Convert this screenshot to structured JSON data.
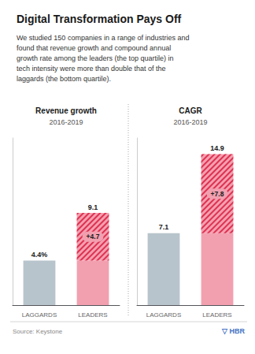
{
  "title": "Digital Transformation Pays Off",
  "subtitle": "We studied 150 companies in a range of industries and\nfound that revenue growth and compound annual\ngrowth rate among the leaders (the top quartile) in\ntech intensity were more than double that of the\nlaggards (the bottom quartile).",
  "annotations": [
    "Source: Keystone",
    "▽ HBR"
  ],
  "chart_data": [
    {
      "type": "bar",
      "title": "Revenue growth",
      "subtitle": "2016-2019",
      "categories": [
        "LAGGARDS",
        "LEADERS"
      ],
      "stacked": true,
      "series": [
        {
          "values": [
            4.4,
            4.4
          ],
          "colors": [
            "#b8c4cb",
            "#f2a0b0"
          ]
        },
        {
          "values": [
            null,
            4.7
          ],
          "color": "#e03050",
          "data_labels": true,
          "value_labels": [
            null,
            "+4.7"
          ]
        }
      ],
      "totals": [
        4.4,
        9.1
      ],
      "total_labels": [
        "4.4%",
        "9.1"
      ],
      "ylim": [
        0,
        16.5
      ],
      "tick_labels": "x",
      "grid": false
    },
    {
      "type": "bar",
      "title": "CAGR",
      "subtitle": "2016-2019",
      "categories": [
        "LAGGARDS",
        "LEADERS"
      ],
      "stacked": true,
      "series": [
        {
          "values": [
            7.1,
            7.1
          ],
          "colors": [
            "#b8c4cb",
            "#f2a0b0"
          ]
        },
        {
          "values": [
            null,
            7.8
          ],
          "color": "#e03050",
          "data_labels": true,
          "value_labels": [
            null,
            "+7.8"
          ]
        }
      ],
      "totals": [
        7.1,
        14.9
      ],
      "total_labels": [
        "7.1",
        "14.9"
      ],
      "ylim": [
        0,
        16.5
      ],
      "tick_labels": "x",
      "grid": false
    }
  ]
}
